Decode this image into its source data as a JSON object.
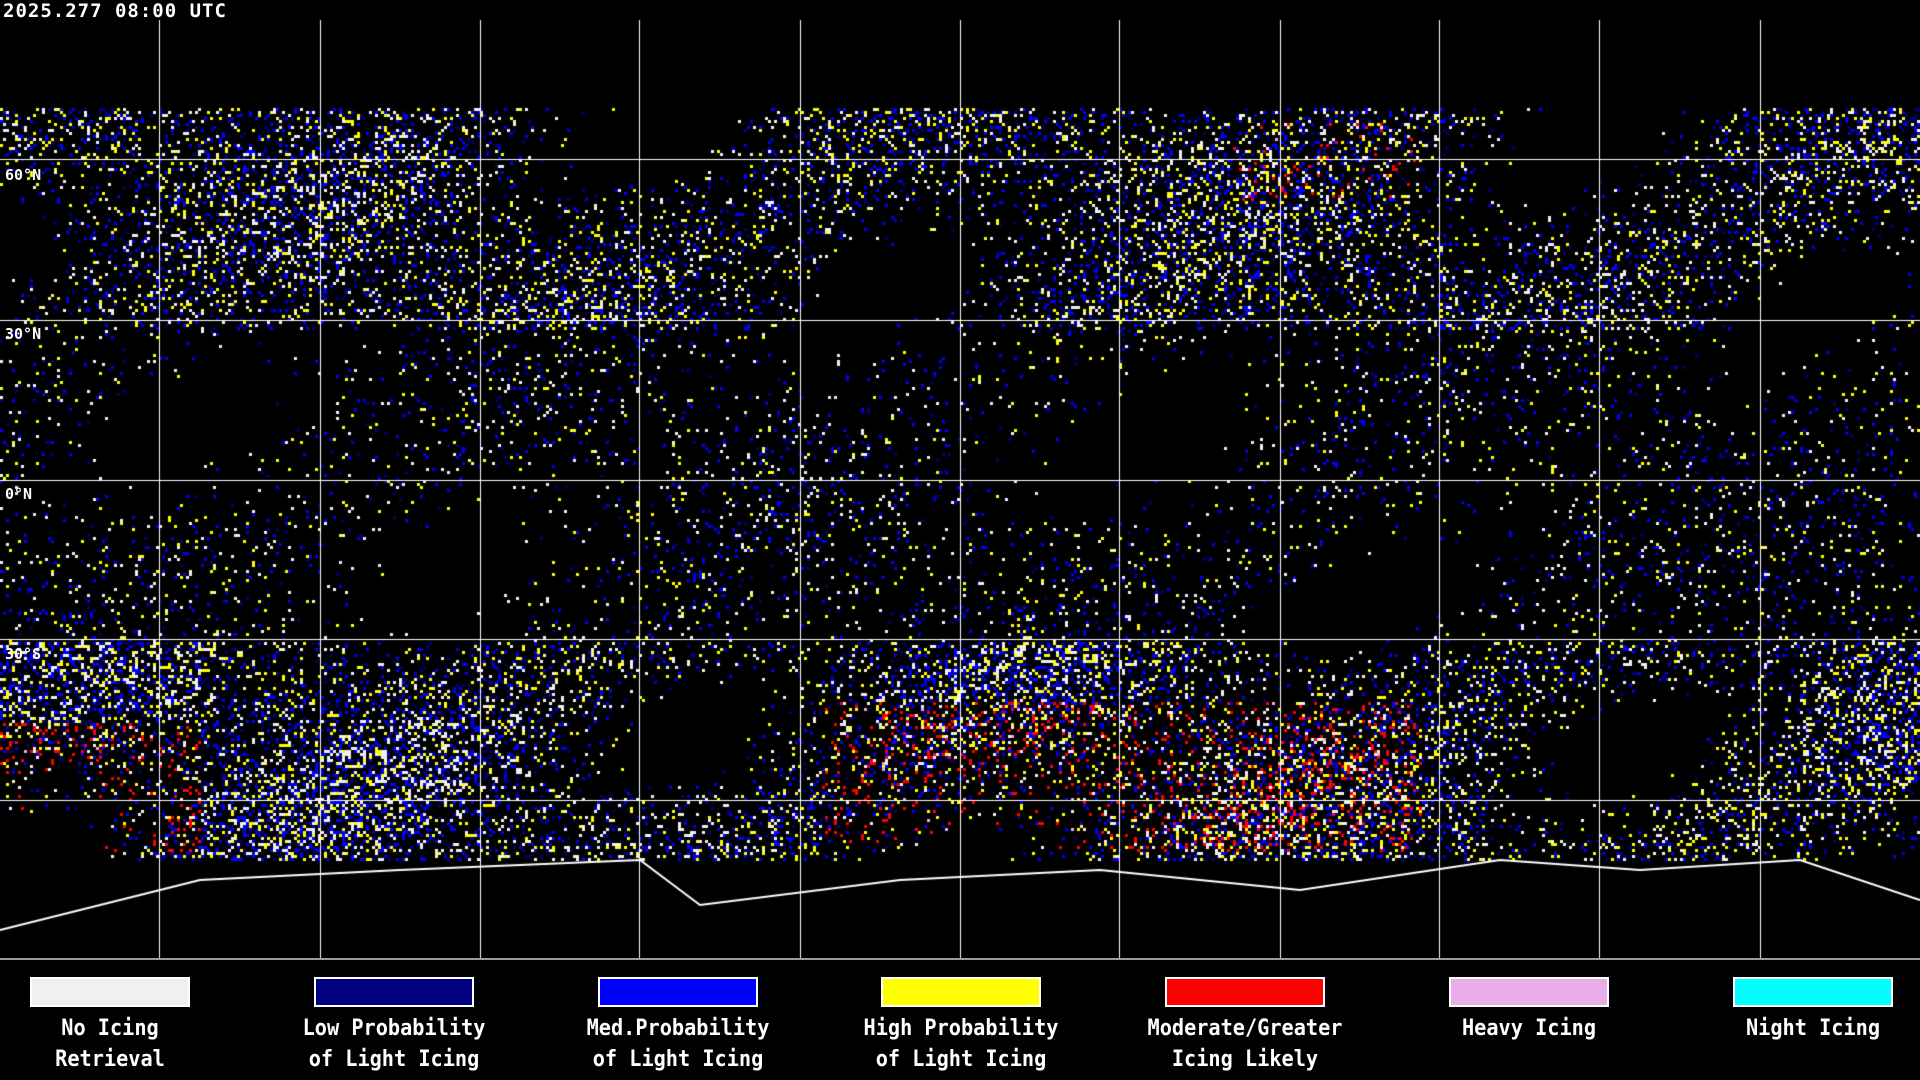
{
  "header": {
    "timestamp": "2025.277 08:00 UTC"
  },
  "map": {
    "latitude_labels": [
      "60°N",
      "30°N",
      "0°N",
      "30°S"
    ],
    "gridline_color": "#ffffff",
    "coastline_color": "#ffffff",
    "background_color": "#000000"
  },
  "legend": [
    {
      "line1": "No Icing",
      "line2": "Retrieval",
      "color": "#f0f0f0"
    },
    {
      "line1": "Low Probability",
      "line2": "of Light Icing",
      "color": "#000080"
    },
    {
      "line1": "Med.Probability",
      "line2": "of Light Icing",
      "color": "#0000ff"
    },
    {
      "line1": "High Probability",
      "line2": "of Light Icing",
      "color": "#ffff00"
    },
    {
      "line1": "Moderate/Greater",
      "line2": "Icing Likely",
      "color": "#ff0000"
    },
    {
      "line1": "Heavy Icing",
      "line2": "",
      "color": "#e8ace8"
    },
    {
      "line1": "Night Icing",
      "line2": "",
      "color": "#00ffff"
    }
  ]
}
